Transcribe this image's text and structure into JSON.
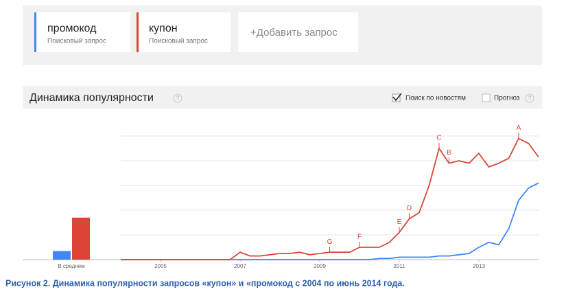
{
  "queries": [
    {
      "term": "промокод",
      "sublabel": "Поисковый запрос",
      "color": "#4285f4"
    },
    {
      "term": "купон",
      "sublabel": "Поисковый запрос",
      "color": "#db4437"
    }
  ],
  "add_query": "+Добавить запрос",
  "section": {
    "title": "Динамика популярности",
    "help": "?",
    "news_checkbox": {
      "label": "Поиск по новостям",
      "checked": true
    },
    "forecast_checkbox": {
      "label": "Прогноз",
      "checked": false,
      "help": "?"
    }
  },
  "chart_data": {
    "type": "line",
    "average_label": "В среднем",
    "x": [
      2004,
      2004.25,
      2004.5,
      2004.75,
      2005,
      2005.25,
      2005.5,
      2005.75,
      2006,
      2006.25,
      2006.5,
      2006.75,
      2007,
      2007.25,
      2007.5,
      2007.75,
      2008,
      2008.25,
      2008.5,
      2008.75,
      2009,
      2009.25,
      2009.5,
      2009.75,
      2010,
      2010.25,
      2010.5,
      2010.75,
      2011,
      2011.25,
      2011.5,
      2011.75,
      2012,
      2012.25,
      2012.5,
      2012.75,
      2013,
      2013.25,
      2013.5,
      2013.75,
      2014,
      2014.25,
      2014.5
    ],
    "series": [
      {
        "name": "промокод",
        "color": "#4285f4",
        "average": 7,
        "values": [
          0,
          0,
          0,
          0,
          0,
          0,
          0,
          0,
          0,
          0,
          0,
          0,
          0,
          0,
          0,
          0,
          0,
          0,
          0,
          0,
          0,
          0,
          0,
          0,
          0,
          0,
          1,
          1,
          2,
          2,
          2,
          2,
          3,
          3,
          4,
          5,
          10,
          14,
          12,
          25,
          48,
          58,
          62
        ]
      },
      {
        "name": "купон",
        "color": "#db4437",
        "average": 34,
        "values": [
          0,
          0,
          0,
          0,
          0,
          0,
          0,
          0,
          0,
          0,
          0,
          0,
          6,
          3,
          3,
          4,
          5,
          5,
          6,
          4,
          5,
          6,
          6,
          6,
          10,
          10,
          10,
          14,
          22,
          33,
          38,
          60,
          90,
          78,
          80,
          78,
          86,
          75,
          78,
          82,
          98,
          94,
          83
        ]
      }
    ],
    "annotations": [
      {
        "label": "G",
        "x": 2009.25
      },
      {
        "label": "F",
        "x": 2010
      },
      {
        "label": "E",
        "x": 2011
      },
      {
        "label": "D",
        "x": 2011.25
      },
      {
        "label": "C",
        "x": 2012
      },
      {
        "label": "B",
        "x": 2012.25
      },
      {
        "label": "A",
        "x": 2014
      }
    ],
    "xlim": [
      2004,
      2014.5
    ],
    "xticks": [
      2005,
      2007,
      2009,
      2011,
      2013
    ],
    "ylim": [
      0,
      100
    ],
    "yticks": [
      20,
      40,
      60,
      80,
      100
    ],
    "grid": true
  },
  "caption": "Рисунок 2. Динамика популярности запросов «купон» и «промокод с 2004 по июнь 2014 года."
}
